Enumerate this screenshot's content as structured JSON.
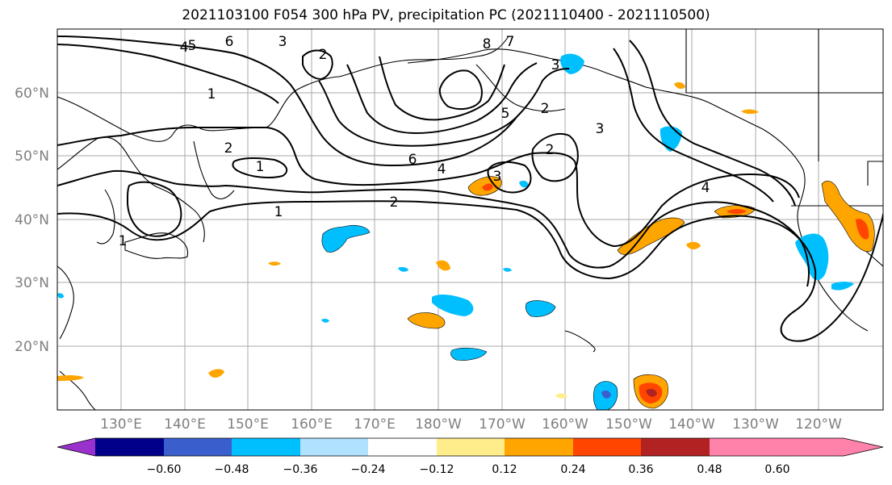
{
  "title": "2021103100 F054 300 hPa PV, precipitation PC (2021110400 - 2021110500)",
  "latitude_labels": [
    "60°N",
    "50°N",
    "40°N",
    "30°N",
    "20°N"
  ],
  "longitude_labels": [
    "130°E",
    "140°E",
    "150°E",
    "160°E",
    "170°E",
    "180°W",
    "170°W",
    "160°W",
    "150°W",
    "140°W",
    "130°W",
    "120°W"
  ],
  "contour_labels": [
    "4",
    "5",
    "6",
    "3",
    "2",
    "8",
    "7",
    "3",
    "5",
    "2",
    "3",
    "1",
    "2",
    "1",
    "6",
    "4",
    "3",
    "2",
    "2",
    "1",
    "1",
    "4"
  ],
  "colorbar": {
    "ticks": [
      "−0.60",
      "−0.48",
      "−0.36",
      "−0.24",
      "−0.12",
      "0.12",
      "0.24",
      "0.36",
      "0.48",
      "0.60"
    ],
    "colors": [
      "#9932cc",
      "#00008b",
      "#3a5fcd",
      "#00bfff",
      "#b0e2ff",
      "#ffffff",
      "#ffec8b",
      "#ffa500",
      "#ff4500",
      "#b22222",
      "#ff82ab"
    ]
  }
}
